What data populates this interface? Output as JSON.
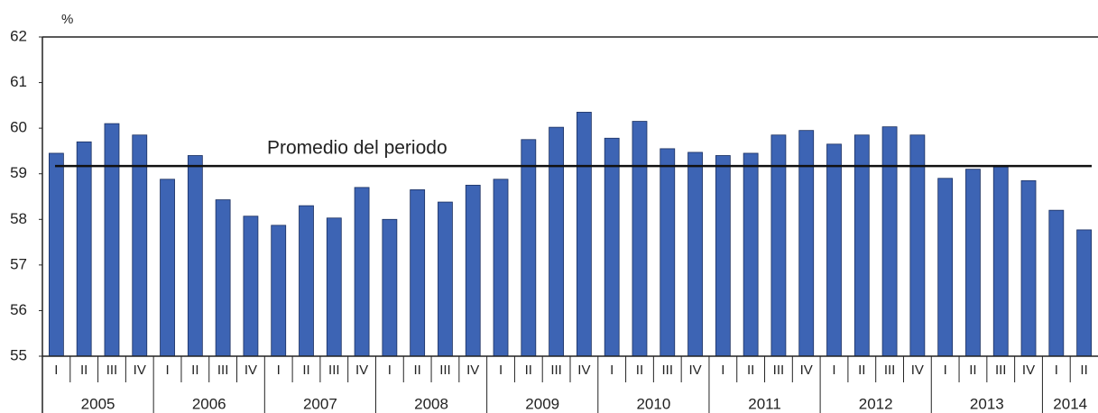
{
  "chart_data": {
    "type": "bar",
    "unit_label": "%",
    "groups": [
      {
        "label": "2005",
        "categories": [
          "I",
          "II",
          "III",
          "IV"
        ]
      },
      {
        "label": "2006",
        "categories": [
          "I",
          "II",
          "III",
          "IV"
        ]
      },
      {
        "label": "2007",
        "categories": [
          "I",
          "II",
          "III",
          "IV"
        ]
      },
      {
        "label": "2008",
        "categories": [
          "I",
          "II",
          "III",
          "IV"
        ]
      },
      {
        "label": "2009",
        "categories": [
          "I",
          "II",
          "III",
          "IV"
        ]
      },
      {
        "label": "2010",
        "categories": [
          "I",
          "II",
          "III",
          "IV"
        ]
      },
      {
        "label": "2011",
        "categories": [
          "I",
          "II",
          "III",
          "IV"
        ]
      },
      {
        "label": "2012",
        "categories": [
          "I",
          "II",
          "III",
          "IV"
        ]
      },
      {
        "label": "2013",
        "categories": [
          "I",
          "II",
          "III",
          "IV"
        ]
      },
      {
        "label": "2014",
        "categories": [
          "I",
          "II"
        ]
      }
    ],
    "values": [
      59.45,
      59.7,
      60.1,
      59.85,
      58.88,
      59.4,
      58.43,
      58.07,
      57.87,
      58.3,
      58.03,
      58.7,
      58.0,
      58.65,
      58.38,
      58.75,
      58.88,
      59.75,
      60.02,
      60.35,
      59.78,
      60.15,
      59.55,
      59.47,
      59.4,
      59.45,
      59.85,
      59.95,
      59.65,
      59.85,
      60.03,
      59.85,
      58.9,
      59.1,
      59.15,
      58.85,
      58.2,
      57.77
    ],
    "color": "#3d64b4",
    "reference_line": {
      "label": "Promedio del periodo",
      "value": 59.17
    },
    "ylim": [
      55,
      62
    ],
    "yticks": [
      55,
      56,
      57,
      58,
      59,
      60,
      61,
      62
    ]
  }
}
